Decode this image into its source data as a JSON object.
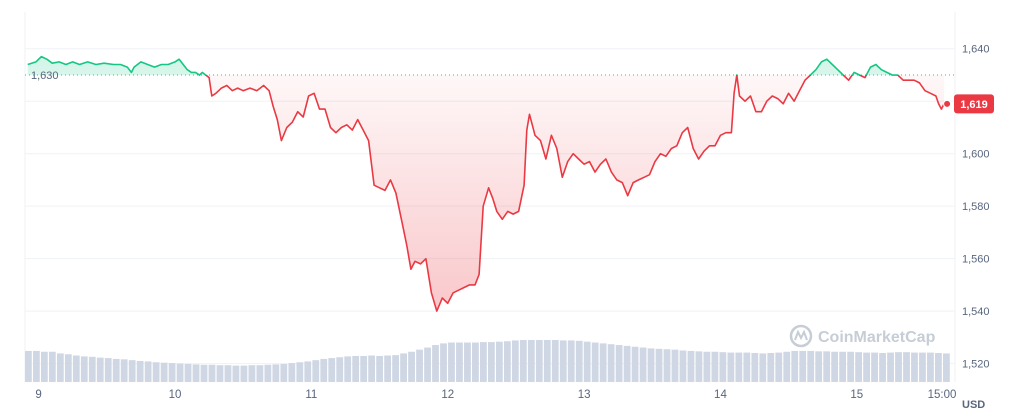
{
  "chart_data": {
    "type": "line",
    "currency_label": "USD",
    "reference_price": 1630,
    "reference_label": "1,630",
    "current_price": 1619,
    "current_label": "1,619",
    "y_ticks": [
      {
        "value": 1640,
        "label": "1,640"
      },
      {
        "value": 1620,
        "label": "1,620"
      },
      {
        "value": 1600,
        "label": "1,600"
      },
      {
        "value": 1580,
        "label": "1,580"
      },
      {
        "value": 1560,
        "label": "1,560"
      },
      {
        "value": 1540,
        "label": "1,540"
      },
      {
        "value": 1520,
        "label": "1,520"
      }
    ],
    "x_ticks": [
      {
        "t": 0.0,
        "label": "9"
      },
      {
        "t": 1.0,
        "label": "10"
      },
      {
        "t": 2.0,
        "label": "11"
      },
      {
        "t": 3.0,
        "label": "12"
      },
      {
        "t": 4.0,
        "label": "13"
      },
      {
        "t": 5.0,
        "label": "14"
      },
      {
        "t": 6.0,
        "label": "15"
      },
      {
        "t": 6.625,
        "label": "15:00"
      }
    ],
    "x_range": [
      -0.1,
      6.72
    ],
    "y_range": [
      1513,
      1654
    ],
    "up_color": "#16c784",
    "down_color": "#ea3943",
    "volume_color": "#cfd6e4",
    "watermark": "CoinMarketCap",
    "series": [
      {
        "values": [
          [
            -0.08,
            1634
          ],
          [
            -0.02,
            1635
          ],
          [
            0.02,
            1637
          ],
          [
            0.06,
            1636
          ],
          [
            0.1,
            1634.5
          ],
          [
            0.15,
            1635
          ],
          [
            0.2,
            1634
          ],
          [
            0.25,
            1635
          ],
          [
            0.3,
            1634
          ],
          [
            0.36,
            1635
          ],
          [
            0.42,
            1634
          ],
          [
            0.48,
            1634.5
          ],
          [
            0.55,
            1634
          ],
          [
            0.6,
            1634
          ],
          [
            0.65,
            1633
          ],
          [
            0.68,
            1631
          ],
          [
            0.7,
            1633
          ],
          [
            0.75,
            1635
          ],
          [
            0.8,
            1634
          ],
          [
            0.85,
            1633
          ],
          [
            0.9,
            1634
          ],
          [
            0.95,
            1634
          ],
          [
            1.0,
            1635
          ],
          [
            1.03,
            1636
          ],
          [
            1.06,
            1634
          ],
          [
            1.09,
            1632
          ],
          [
            1.12,
            1631
          ],
          [
            1.15,
            1631
          ],
          [
            1.18,
            1630
          ],
          [
            1.2,
            1631
          ],
          [
            1.25,
            1629
          ],
          [
            1.27,
            1622
          ],
          [
            1.3,
            1623
          ],
          [
            1.34,
            1625
          ],
          [
            1.38,
            1626
          ],
          [
            1.42,
            1624
          ],
          [
            1.46,
            1625
          ],
          [
            1.5,
            1624
          ],
          [
            1.55,
            1625
          ],
          [
            1.6,
            1624
          ],
          [
            1.65,
            1626
          ],
          [
            1.69,
            1624
          ],
          [
            1.72,
            1618
          ],
          [
            1.75,
            1613
          ],
          [
            1.78,
            1605
          ],
          [
            1.82,
            1610
          ],
          [
            1.86,
            1612
          ],
          [
            1.9,
            1616
          ],
          [
            1.94,
            1614
          ],
          [
            1.98,
            1622
          ],
          [
            2.02,
            1623
          ],
          [
            2.06,
            1617
          ],
          [
            2.1,
            1617
          ],
          [
            2.14,
            1610
          ],
          [
            2.18,
            1608
          ],
          [
            2.22,
            1610
          ],
          [
            2.26,
            1611
          ],
          [
            2.3,
            1609
          ],
          [
            2.34,
            1613
          ],
          [
            2.38,
            1609
          ],
          [
            2.42,
            1605
          ],
          [
            2.46,
            1588
          ],
          [
            2.5,
            1587
          ],
          [
            2.54,
            1586
          ],
          [
            2.58,
            1590
          ],
          [
            2.62,
            1585
          ],
          [
            2.66,
            1575
          ],
          [
            2.7,
            1565
          ],
          [
            2.73,
            1556
          ],
          [
            2.76,
            1559
          ],
          [
            2.8,
            1558
          ],
          [
            2.84,
            1560
          ],
          [
            2.88,
            1547
          ],
          [
            2.92,
            1540
          ],
          [
            2.96,
            1545
          ],
          [
            3.0,
            1543
          ],
          [
            3.04,
            1547
          ],
          [
            3.08,
            1548
          ],
          [
            3.12,
            1549
          ],
          [
            3.16,
            1550
          ],
          [
            3.2,
            1550
          ],
          [
            3.23,
            1554
          ],
          [
            3.26,
            1580
          ],
          [
            3.3,
            1587
          ],
          [
            3.33,
            1583
          ],
          [
            3.36,
            1578
          ],
          [
            3.4,
            1575
          ],
          [
            3.44,
            1578
          ],
          [
            3.48,
            1577
          ],
          [
            3.52,
            1578
          ],
          [
            3.56,
            1588
          ],
          [
            3.58,
            1609
          ],
          [
            3.6,
            1615
          ],
          [
            3.64,
            1607
          ],
          [
            3.68,
            1605
          ],
          [
            3.72,
            1598
          ],
          [
            3.76,
            1607
          ],
          [
            3.8,
            1602
          ],
          [
            3.84,
            1591
          ],
          [
            3.88,
            1597
          ],
          [
            3.92,
            1600
          ],
          [
            3.96,
            1598
          ],
          [
            4.0,
            1596
          ],
          [
            4.04,
            1597
          ],
          [
            4.08,
            1593
          ],
          [
            4.12,
            1596
          ],
          [
            4.16,
            1598
          ],
          [
            4.2,
            1593
          ],
          [
            4.24,
            1590
          ],
          [
            4.28,
            1589
          ],
          [
            4.32,
            1584
          ],
          [
            4.36,
            1589
          ],
          [
            4.4,
            1590
          ],
          [
            4.44,
            1591
          ],
          [
            4.48,
            1592
          ],
          [
            4.52,
            1597
          ],
          [
            4.56,
            1600
          ],
          [
            4.6,
            1599
          ],
          [
            4.64,
            1602
          ],
          [
            4.68,
            1603
          ],
          [
            4.72,
            1608
          ],
          [
            4.76,
            1610
          ],
          [
            4.8,
            1602
          ],
          [
            4.84,
            1598
          ],
          [
            4.88,
            1601
          ],
          [
            4.92,
            1603
          ],
          [
            4.96,
            1603
          ],
          [
            5.0,
            1607
          ],
          [
            5.04,
            1608
          ],
          [
            5.08,
            1608
          ],
          [
            5.1,
            1623
          ],
          [
            5.12,
            1630
          ],
          [
            5.14,
            1622
          ],
          [
            5.18,
            1620
          ],
          [
            5.22,
            1622
          ],
          [
            5.26,
            1616
          ],
          [
            5.3,
            1616
          ],
          [
            5.34,
            1620
          ],
          [
            5.38,
            1622
          ],
          [
            5.42,
            1621
          ],
          [
            5.46,
            1619
          ],
          [
            5.5,
            1623
          ],
          [
            5.54,
            1620
          ],
          [
            5.58,
            1624
          ],
          [
            5.62,
            1628
          ],
          [
            5.66,
            1630
          ],
          [
            5.7,
            1632
          ],
          [
            5.74,
            1635
          ],
          [
            5.78,
            1636
          ],
          [
            5.82,
            1634
          ],
          [
            5.86,
            1632
          ],
          [
            5.9,
            1630
          ],
          [
            5.94,
            1628
          ],
          [
            5.98,
            1631
          ],
          [
            6.02,
            1630
          ],
          [
            6.06,
            1629
          ],
          [
            6.1,
            1633
          ],
          [
            6.14,
            1634
          ],
          [
            6.18,
            1632
          ],
          [
            6.22,
            1631
          ],
          [
            6.26,
            1630
          ],
          [
            6.3,
            1630
          ],
          [
            6.34,
            1628
          ],
          [
            6.38,
            1628
          ],
          [
            6.42,
            1628
          ],
          [
            6.46,
            1627
          ],
          [
            6.5,
            1624
          ],
          [
            6.54,
            1623
          ],
          [
            6.58,
            1622
          ],
          [
            6.6,
            1619
          ],
          [
            6.62,
            1617
          ],
          [
            6.64,
            1619
          ]
        ]
      }
    ],
    "volume": [
      0.74,
      0.74,
      0.72,
      0.72,
      0.68,
      0.66,
      0.63,
      0.61,
      0.6,
      0.58,
      0.57,
      0.55,
      0.54,
      0.52,
      0.5,
      0.49,
      0.47,
      0.46,
      0.45,
      0.44,
      0.43,
      0.42,
      0.41,
      0.41,
      0.4,
      0.4,
      0.39,
      0.39,
      0.4,
      0.4,
      0.41,
      0.42,
      0.43,
      0.45,
      0.47,
      0.49,
      0.52,
      0.55,
      0.57,
      0.59,
      0.61,
      0.62,
      0.62,
      0.63,
      0.62,
      0.63,
      0.64,
      0.68,
      0.72,
      0.77,
      0.82,
      0.88,
      0.92,
      0.94,
      0.94,
      0.94,
      0.94,
      0.95,
      0.95,
      0.96,
      0.97,
      0.99,
      1.0,
      1.0,
      1.0,
      1.0,
      1.0,
      0.99,
      0.99,
      0.98,
      0.96,
      0.94,
      0.92,
      0.9,
      0.88,
      0.86,
      0.84,
      0.82,
      0.8,
      0.79,
      0.78,
      0.77,
      0.75,
      0.74,
      0.73,
      0.72,
      0.72,
      0.71,
      0.7,
      0.7,
      0.7,
      0.69,
      0.68,
      0.69,
      0.7,
      0.72,
      0.74,
      0.74,
      0.74,
      0.73,
      0.73,
      0.72,
      0.72,
      0.72,
      0.71,
      0.7,
      0.7,
      0.69,
      0.7,
      0.71,
      0.71,
      0.7,
      0.7,
      0.7,
      0.69,
      0.68
    ]
  }
}
